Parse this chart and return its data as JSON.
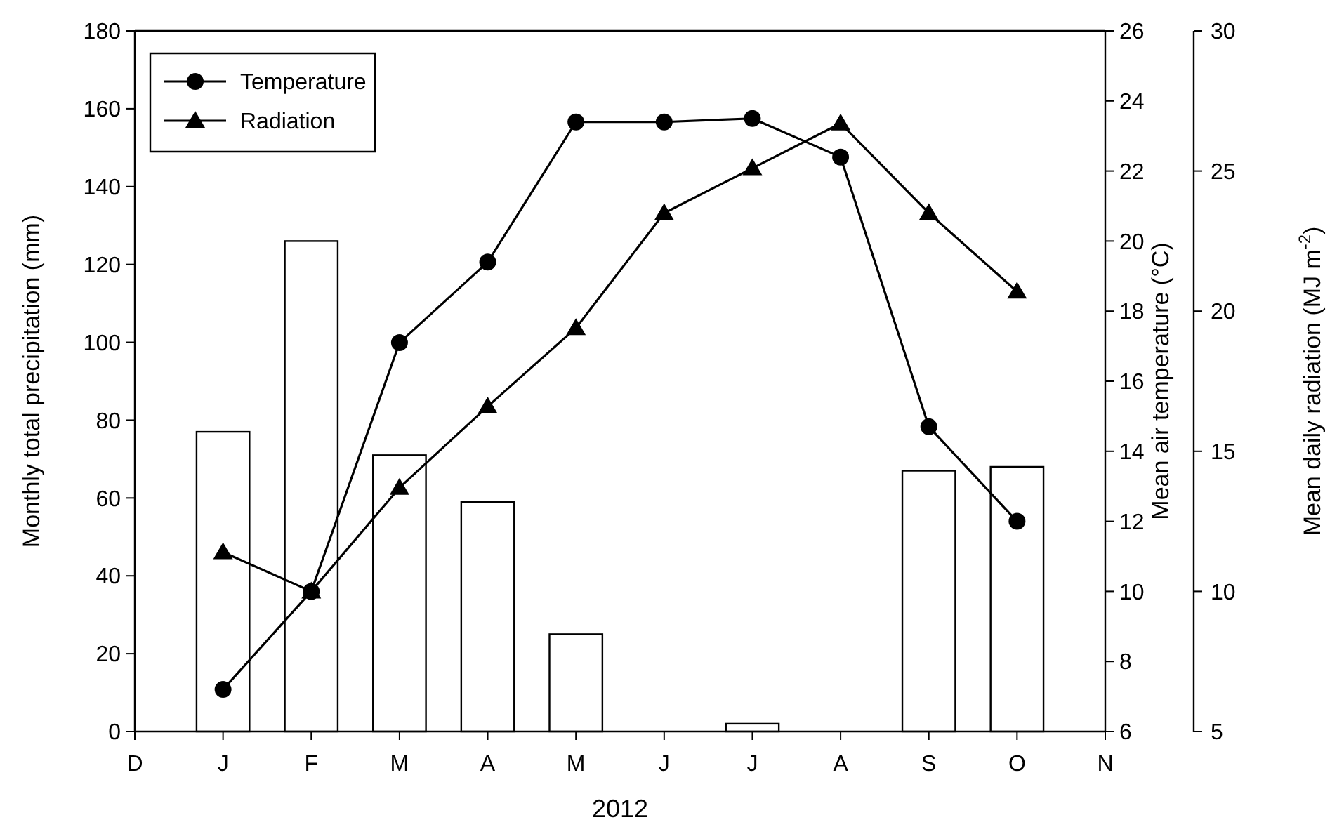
{
  "chart_data": {
    "type": "bar",
    "xlabel": "2012",
    "ylabel": "Monthly total precipitation (mm)",
    "y2label": "Mean air temperature (°C)",
    "y3label": "Mean daily radiation (MJ m$^{-2}$)",
    "categories": [
      "D",
      "J",
      "F",
      "M",
      "A",
      "M",
      "J",
      "J",
      "A",
      "S",
      "O",
      "N"
    ],
    "series": [
      {
        "color": "#ffffff",
        "values": [
          null,
          77,
          126,
          71,
          59,
          25,
          0,
          2,
          0,
          67,
          68,
          null
        ]
      },
      {
        "type": "line",
        "name": "Temperature",
        "color": "#000000",
        "axis": "y2",
        "marker": "circle",
        "values": [
          null,
          7.2,
          10.0,
          17.1,
          19.4,
          23.4,
          23.4,
          23.5,
          22.4,
          14.7,
          12.0,
          null
        ]
      },
      {
        "type": "line",
        "name": "Radiation",
        "color": "#000000",
        "axis": "y3",
        "marker": "triangle",
        "values": [
          null,
          11.4,
          10.0,
          13.7,
          16.6,
          19.4,
          23.5,
          25.1,
          26.7,
          23.5,
          20.7,
          null
        ]
      }
    ],
    "ylim": [
      0,
      180
    ],
    "yticks": [
      0,
      20,
      40,
      60,
      80,
      100,
      120,
      140,
      160,
      180
    ],
    "y2lim": [
      6,
      26
    ],
    "y2ticks": [
      6,
      8,
      10,
      12,
      14,
      16,
      18,
      20,
      22,
      24,
      26
    ],
    "y3lim": [
      5,
      30
    ],
    "y3ticks": [
      5,
      10,
      15,
      20,
      25,
      30
    ],
    "grid": false,
    "legend": "top left",
    "line_style": "solid"
  }
}
